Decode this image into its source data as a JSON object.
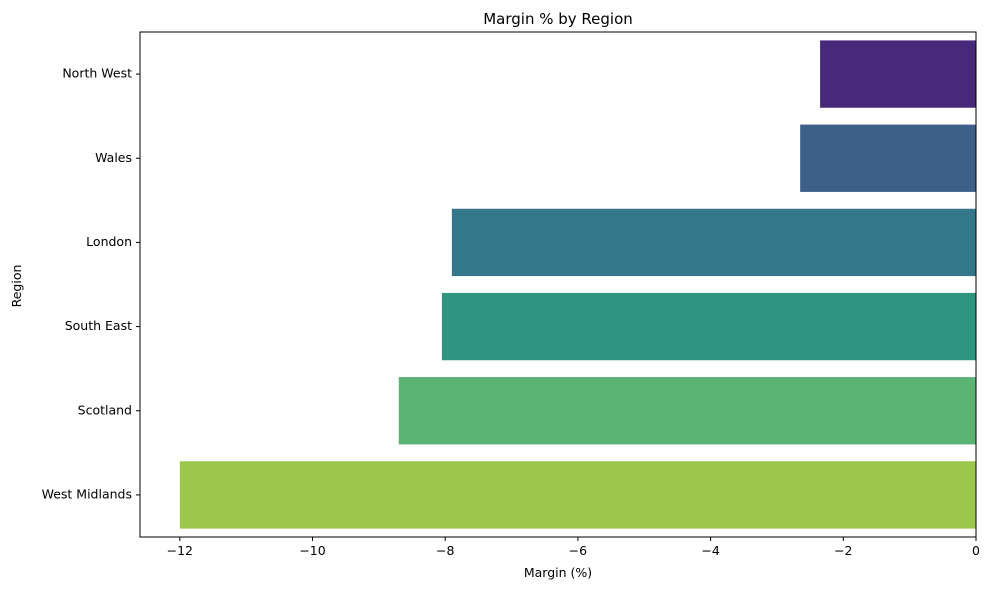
{
  "chart_data": {
    "type": "bar",
    "orientation": "horizontal",
    "title": "Margin % by Region",
    "xlabel": "Margin (%)",
    "ylabel": "Region",
    "categories": [
      "North West",
      "Wales",
      "London",
      "South East",
      "Scotland",
      "West Midlands"
    ],
    "values": [
      -2.35,
      -2.65,
      -7.9,
      -8.05,
      -8.7,
      -12.0
    ],
    "colors": [
      "#482878",
      "#3e5f8a",
      "#34778a",
      "#2f9580",
      "#5bb373",
      "#9bc74c"
    ],
    "xlim": [
      -12.6,
      0
    ],
    "xticks": [
      -12,
      -10,
      -8,
      -6,
      -4,
      -2,
      0
    ],
    "xtick_labels": [
      "−12",
      "−10",
      "−8",
      "−6",
      "−4",
      "−2",
      "0"
    ],
    "grid": false,
    "legend": false
  }
}
